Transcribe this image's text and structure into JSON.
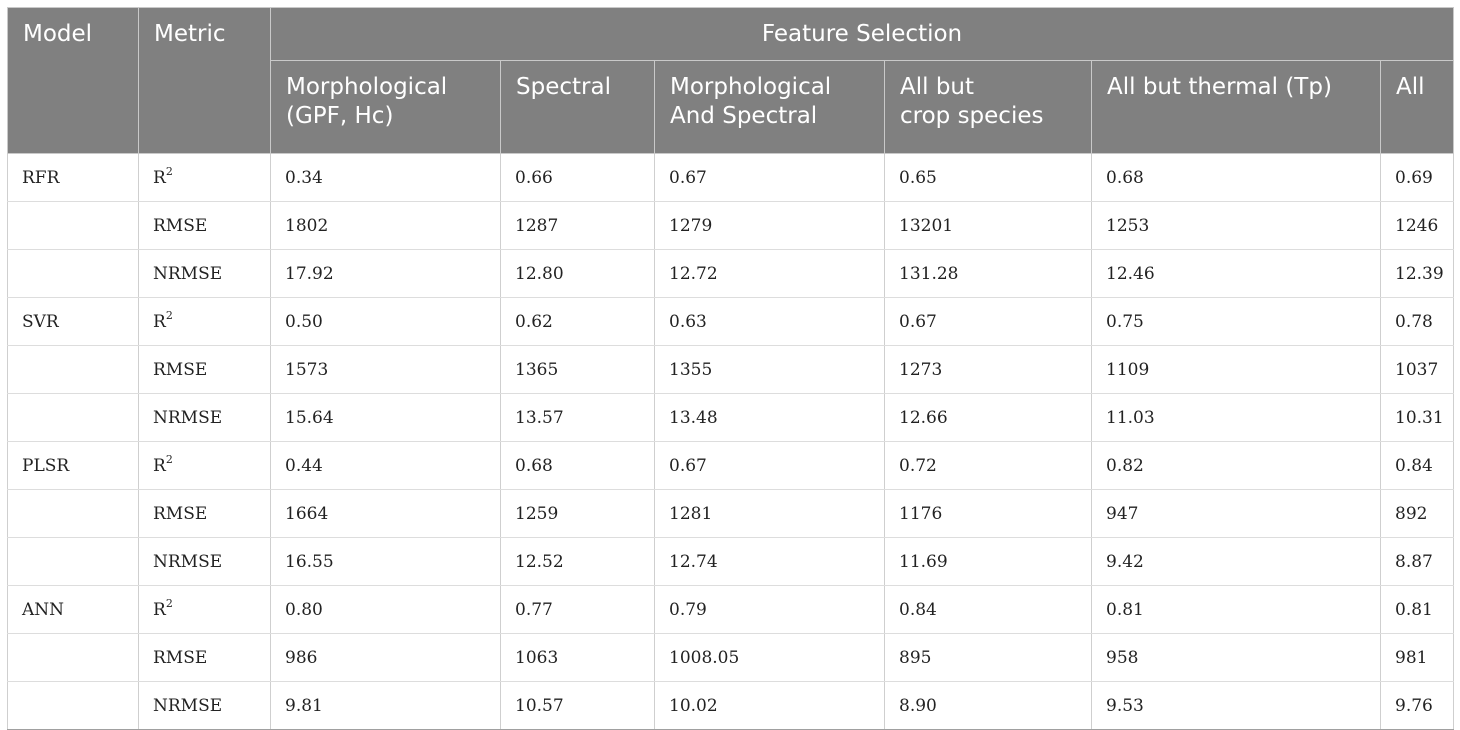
{
  "header": {
    "model": "Model",
    "metric": "Metric",
    "feature_selection": "Feature Selection",
    "features": [
      {
        "line1": "Morphological",
        "line2": "(GPF, Hc)"
      },
      {
        "line1": "Spectral",
        "line2": ""
      },
      {
        "line1": "Morphological",
        "line2": "And Spectral"
      },
      {
        "line1": "All but",
        "line2": "crop species"
      },
      {
        "line1": "All but thermal (Tp)",
        "line2": ""
      },
      {
        "line1": "All",
        "line2": ""
      }
    ]
  },
  "models": [
    {
      "name": "RFR",
      "rows": [
        {
          "metric": "R",
          "sup": "2",
          "values": [
            "0.34",
            "0.66",
            "0.67",
            "0.65",
            "0.68",
            "0.69"
          ]
        },
        {
          "metric": "RMSE",
          "sup": "",
          "values": [
            "1802",
            "1287",
            "1279",
            "13201",
            "1253",
            "1246"
          ]
        },
        {
          "metric": "NRMSE",
          "sup": "",
          "values": [
            "17.92",
            "12.80",
            "12.72",
            "131.28",
            "12.46",
            "12.39"
          ]
        }
      ]
    },
    {
      "name": "SVR",
      "rows": [
        {
          "metric": "R",
          "sup": "2",
          "values": [
            "0.50",
            "0.62",
            "0.63",
            "0.67",
            "0.75",
            "0.78"
          ]
        },
        {
          "metric": "RMSE",
          "sup": "",
          "values": [
            "1573",
            "1365",
            "1355",
            "1273",
            "1109",
            "1037"
          ]
        },
        {
          "metric": "NRMSE",
          "sup": "",
          "values": [
            "15.64",
            "13.57",
            "13.48",
            "12.66",
            "11.03",
            "10.31"
          ]
        }
      ]
    },
    {
      "name": "PLSR",
      "rows": [
        {
          "metric": "R",
          "sup": "2",
          "values": [
            "0.44",
            "0.68",
            "0.67",
            "0.72",
            "0.82",
            "0.84"
          ]
        },
        {
          "metric": "RMSE",
          "sup": "",
          "values": [
            "1664",
            "1259",
            "1281",
            "1176",
            "947",
            "892"
          ]
        },
        {
          "metric": "NRMSE",
          "sup": "",
          "values": [
            "16.55",
            "12.52",
            "12.74",
            "11.69",
            "9.42",
            "8.87"
          ]
        }
      ]
    },
    {
      "name": "ANN",
      "rows": [
        {
          "metric": "R",
          "sup": "2",
          "values": [
            "0.80",
            "0.77",
            "0.79",
            "0.84",
            "0.81",
            "0.81"
          ]
        },
        {
          "metric": "RMSE",
          "sup": "",
          "values": [
            "986",
            "1063",
            "1008.05",
            "895",
            "958",
            "981"
          ]
        },
        {
          "metric": "NRMSE",
          "sup": "",
          "values": [
            "9.81",
            "10.57",
            "10.02",
            "8.90",
            "9.53",
            "9.76"
          ]
        }
      ]
    }
  ]
}
